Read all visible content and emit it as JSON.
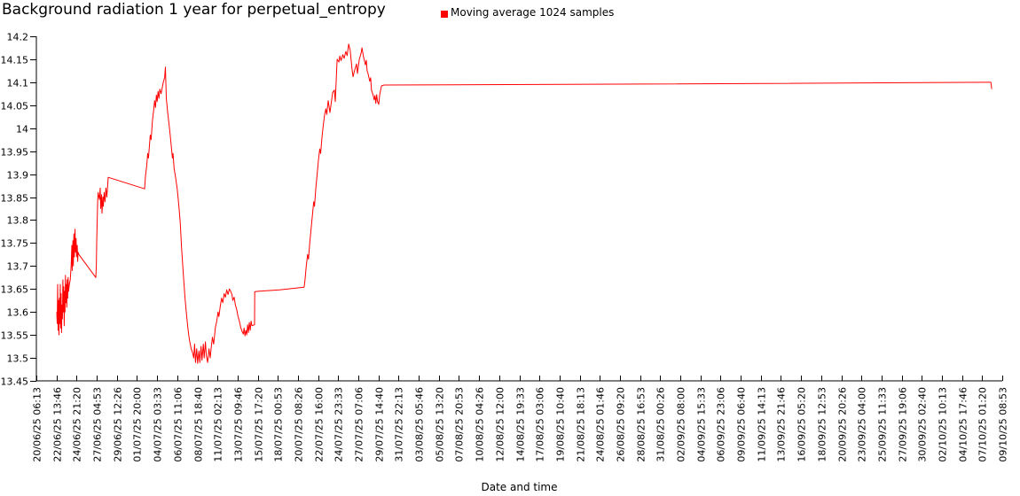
{
  "title": "Background radiation 1 year for perpetual_entropy",
  "legend": {
    "label": "Moving average 1024 samples",
    "color": "#ff0000"
  },
  "colors": {
    "line": "#ff0000",
    "axis": "#000000",
    "text": "#000000",
    "background": "#ffffff"
  },
  "chart_data": {
    "type": "line",
    "title": "Background radiation 1 year for perpetual_entropy",
    "xlabel": "Date and time",
    "ylabel": "",
    "ylim": [
      13.45,
      14.2
    ],
    "grid": false,
    "legend_position": "top",
    "y_ticks": [
      "14.2",
      "14.15",
      "14.1",
      "14.05",
      "14",
      "13.95",
      "13.9",
      "13.85",
      "13.8",
      "13.75",
      "13.7",
      "13.65",
      "13.6",
      "13.55",
      "13.5",
      "13.45"
    ],
    "x_tick_labels": [
      "20/06/25 06:13",
      "22/06/25 13:46",
      "24/06/25 21:20",
      "27/06/25 04:53",
      "29/06/25 12:26",
      "01/07/25 20:00",
      "04/07/25 03:33",
      "06/07/25 11:06",
      "08/07/25 18:40",
      "11/07/25 02:13",
      "13/07/25 09:46",
      "15/07/25 17:20",
      "18/07/25 00:53",
      "20/07/25 08:26",
      "22/07/25 16:00",
      "24/07/25 23:33",
      "27/07/25 07:06",
      "29/07/25 14:40",
      "31/07/25 22:13",
      "03/08/25 05:46",
      "05/08/25 13:20",
      "07/08/25 20:53",
      "10/08/25 04:26",
      "12/08/25 12:00",
      "14/08/25 19:33",
      "17/08/25 03:06",
      "19/08/25 10:40",
      "21/08/25 18:13",
      "24/08/25 01:46",
      "26/08/25 09:20",
      "28/08/25 16:53",
      "31/08/25 00:26",
      "02/09/25 08:00",
      "04/09/25 15:33",
      "06/09/25 23:06",
      "09/09/25 06:40",
      "11/09/25 14:13",
      "13/09/25 21:46",
      "16/09/25 05:20",
      "18/09/25 12:53",
      "20/09/25 20:26",
      "23/09/25 04:00",
      "25/09/25 11:33",
      "27/09/25 19:06",
      "30/09/25 02:40",
      "02/10/25 10:13",
      "04/10/25 17:46",
      "07/10/25 01:20",
      "09/10/25 08:53"
    ],
    "x_span_days": 111.11,
    "x_unit": "days since 20/06/25 06:13",
    "series": [
      {
        "name": "Moving average 1024 samples",
        "color": "#ff0000",
        "points": [
          [
            2.35,
            13.6
          ],
          [
            2.4,
            13.575
          ],
          [
            2.45,
            13.66
          ],
          [
            2.5,
            13.56
          ],
          [
            2.55,
            13.625
          ],
          [
            2.6,
            13.55
          ],
          [
            2.65,
            13.63
          ],
          [
            2.7,
            13.575
          ],
          [
            2.75,
            13.66
          ],
          [
            2.8,
            13.565
          ],
          [
            2.85,
            13.64
          ],
          [
            2.9,
            13.555
          ],
          [
            2.95,
            13.615
          ],
          [
            3.0,
            13.585
          ],
          [
            3.05,
            13.67
          ],
          [
            3.1,
            13.6
          ],
          [
            3.15,
            13.655
          ],
          [
            3.2,
            13.57
          ],
          [
            3.25,
            13.645
          ],
          [
            3.3,
            13.6
          ],
          [
            3.35,
            13.68
          ],
          [
            3.4,
            13.62
          ],
          [
            3.45,
            13.66
          ],
          [
            3.5,
            13.61
          ],
          [
            3.55,
            13.67
          ],
          [
            3.6,
            13.63
          ],
          [
            3.65,
            13.675
          ],
          [
            3.7,
            13.645
          ],
          [
            3.8,
            13.66
          ],
          [
            3.9,
            13.67
          ],
          [
            4.0,
            13.7
          ],
          [
            4.08,
            13.745
          ],
          [
            4.12,
            13.69
          ],
          [
            4.2,
            13.755
          ],
          [
            4.25,
            13.7
          ],
          [
            4.32,
            13.77
          ],
          [
            4.37,
            13.72
          ],
          [
            4.45,
            13.78
          ],
          [
            4.5,
            13.73
          ],
          [
            4.57,
            13.76
          ],
          [
            4.62,
            13.72
          ],
          [
            4.7,
            13.745
          ],
          [
            4.75,
            13.71
          ],
          [
            4.8,
            13.73
          ],
          [
            4.9,
            13.725
          ],
          [
            6.84,
            13.675
          ],
          [
            6.9,
            13.7
          ],
          [
            6.95,
            13.76
          ],
          [
            7.0,
            13.8
          ],
          [
            7.05,
            13.84
          ],
          [
            7.1,
            13.86
          ],
          [
            7.25,
            13.845
          ],
          [
            7.35,
            13.87
          ],
          [
            7.4,
            13.825
          ],
          [
            7.5,
            13.855
          ],
          [
            7.55,
            13.815
          ],
          [
            7.65,
            13.85
          ],
          [
            7.7,
            13.83
          ],
          [
            7.8,
            13.86
          ],
          [
            7.9,
            13.84
          ],
          [
            8.0,
            13.87
          ],
          [
            8.1,
            13.85
          ],
          [
            8.2,
            13.875
          ],
          [
            8.26,
            13.893
          ],
          [
            12.45,
            13.868
          ],
          [
            12.55,
            13.895
          ],
          [
            12.7,
            13.92
          ],
          [
            12.8,
            13.945
          ],
          [
            12.9,
            13.935
          ],
          [
            13.0,
            13.96
          ],
          [
            13.1,
            13.985
          ],
          [
            13.2,
            13.975
          ],
          [
            13.35,
            14.015
          ],
          [
            13.5,
            14.04
          ],
          [
            13.6,
            14.06
          ],
          [
            13.7,
            14.045
          ],
          [
            13.8,
            14.072
          ],
          [
            13.9,
            14.058
          ],
          [
            14.0,
            14.08
          ],
          [
            14.1,
            14.065
          ],
          [
            14.2,
            14.085
          ],
          [
            14.35,
            14.075
          ],
          [
            14.5,
            14.09
          ],
          [
            14.6,
            14.1
          ],
          [
            14.75,
            14.11
          ],
          [
            14.85,
            14.133
          ],
          [
            14.95,
            14.065
          ],
          [
            15.1,
            14.035
          ],
          [
            15.25,
            14.01
          ],
          [
            15.4,
            13.985
          ],
          [
            15.55,
            13.955
          ],
          [
            15.65,
            13.935
          ],
          [
            15.72,
            13.945
          ],
          [
            15.85,
            13.912
          ],
          [
            16.0,
            13.895
          ],
          [
            16.2,
            13.868
          ],
          [
            16.4,
            13.83
          ],
          [
            16.55,
            13.795
          ],
          [
            16.7,
            13.74
          ],
          [
            16.9,
            13.685
          ],
          [
            17.1,
            13.63
          ],
          [
            17.3,
            13.588
          ],
          [
            17.45,
            13.562
          ],
          [
            17.6,
            13.54
          ],
          [
            17.8,
            13.52
          ],
          [
            17.96,
            13.512
          ],
          [
            18.1,
            13.5
          ],
          [
            18.2,
            13.53
          ],
          [
            18.3,
            13.49
          ],
          [
            18.45,
            13.52
          ],
          [
            18.55,
            13.488
          ],
          [
            18.7,
            13.515
          ],
          [
            18.8,
            13.49
          ],
          [
            18.95,
            13.525
          ],
          [
            19.05,
            13.495
          ],
          [
            19.2,
            13.53
          ],
          [
            19.3,
            13.5
          ],
          [
            19.45,
            13.535
          ],
          [
            19.55,
            13.505
          ],
          [
            19.7,
            13.49
          ],
          [
            19.85,
            13.52
          ],
          [
            20.0,
            13.5
          ],
          [
            20.1,
            13.52
          ],
          [
            20.25,
            13.545
          ],
          [
            20.4,
            13.53
          ],
          [
            20.6,
            13.567
          ],
          [
            20.75,
            13.58
          ],
          [
            20.9,
            13.6
          ],
          [
            21.0,
            13.59
          ],
          [
            21.15,
            13.612
          ],
          [
            21.3,
            13.63
          ],
          [
            21.45,
            13.62
          ],
          [
            21.6,
            13.64
          ],
          [
            21.75,
            13.632
          ],
          [
            21.9,
            13.648
          ],
          [
            22.05,
            13.638
          ],
          [
            22.2,
            13.65
          ],
          [
            22.35,
            13.645
          ],
          [
            22.5,
            13.638
          ],
          [
            22.6,
            13.625
          ],
          [
            22.75,
            13.632
          ],
          [
            22.9,
            13.615
          ],
          [
            23.05,
            13.605
          ],
          [
            23.2,
            13.59
          ],
          [
            23.35,
            13.58
          ],
          [
            23.5,
            13.567
          ],
          [
            23.65,
            13.558
          ],
          [
            23.8,
            13.552
          ],
          [
            23.9,
            13.565
          ],
          [
            24.0,
            13.548
          ],
          [
            24.1,
            13.56
          ],
          [
            24.2,
            13.55
          ],
          [
            24.3,
            13.572
          ],
          [
            24.4,
            13.555
          ],
          [
            24.5,
            13.577
          ],
          [
            24.6,
            13.56
          ],
          [
            24.7,
            13.58
          ],
          [
            24.8,
            13.57
          ],
          [
            24.95,
            13.571
          ],
          [
            25.1,
            13.572
          ],
          [
            25.12,
            13.644
          ],
          [
            25.5,
            13.645
          ],
          [
            28.0,
            13.648
          ],
          [
            30.8,
            13.654
          ],
          [
            30.9,
            13.67
          ],
          [
            31.05,
            13.7
          ],
          [
            31.2,
            13.725
          ],
          [
            31.3,
            13.715
          ],
          [
            31.45,
            13.75
          ],
          [
            31.6,
            13.78
          ],
          [
            31.75,
            13.81
          ],
          [
            31.9,
            13.84
          ],
          [
            32.0,
            13.83
          ],
          [
            32.15,
            13.87
          ],
          [
            32.3,
            13.9
          ],
          [
            32.45,
            13.93
          ],
          [
            32.6,
            13.955
          ],
          [
            32.7,
            13.945
          ],
          [
            32.85,
            13.98
          ],
          [
            33.0,
            14.005
          ],
          [
            33.15,
            14.028
          ],
          [
            33.3,
            14.042
          ],
          [
            33.4,
            14.03
          ],
          [
            33.57,
            14.06
          ],
          [
            33.77,
            14.034
          ],
          [
            34.08,
            14.077
          ],
          [
            34.28,
            14.083
          ],
          [
            34.38,
            14.058
          ],
          [
            34.6,
            14.15
          ],
          [
            34.8,
            14.144
          ],
          [
            34.9,
            14.157
          ],
          [
            35.05,
            14.147
          ],
          [
            35.25,
            14.16
          ],
          [
            35.4,
            14.152
          ],
          [
            35.6,
            14.167
          ],
          [
            35.75,
            14.158
          ],
          [
            35.92,
            14.183
          ],
          [
            36.1,
            14.17
          ],
          [
            36.3,
            14.13
          ],
          [
            36.42,
            14.112
          ],
          [
            36.6,
            14.125
          ],
          [
            36.83,
            14.14
          ],
          [
            36.93,
            14.119
          ],
          [
            37.15,
            14.15
          ],
          [
            37.35,
            14.163
          ],
          [
            37.45,
            14.175
          ],
          [
            37.65,
            14.154
          ],
          [
            37.85,
            14.138
          ],
          [
            37.95,
            14.148
          ],
          [
            38.05,
            14.125
          ],
          [
            38.15,
            14.119
          ],
          [
            38.35,
            14.102
          ],
          [
            38.45,
            14.11
          ],
          [
            38.55,
            14.083
          ],
          [
            38.75,
            14.071
          ],
          [
            38.85,
            14.062
          ],
          [
            38.95,
            14.071
          ],
          [
            39.05,
            14.054
          ],
          [
            39.15,
            14.073
          ],
          [
            39.25,
            14.058
          ],
          [
            39.38,
            14.052
          ],
          [
            39.5,
            14.073
          ],
          [
            39.7,
            14.092
          ],
          [
            40.0,
            14.094
          ],
          [
            70.0,
            14.096
          ],
          [
            109.7,
            14.1
          ],
          [
            109.8,
            14.1
          ],
          [
            109.9,
            14.085
          ]
        ]
      }
    ]
  }
}
